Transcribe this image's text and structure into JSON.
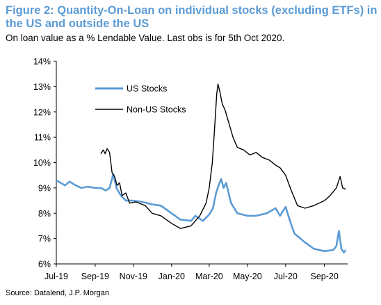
{
  "title": "Figure 2: Quantity-On-Loan on individual stocks (excluding ETFs) in the US and outside the US",
  "subtitle": "On loan value as a % Lendable Value. Last obs is for 5th Oct 2020.",
  "source": "Source: Datalend, J.P. Morgan",
  "chart_data": {
    "type": "line",
    "title": "Figure 2: Quantity-On-Loan on individual stocks (excluding ETFs) in the US and outside the US",
    "subtitle": "On loan value as a % Lendable Value. Last obs is for 5th Oct 2020.",
    "xlabel": "",
    "ylabel": "",
    "x_ticks": [
      "Jul-19",
      "Sep-19",
      "Nov-19",
      "Jan-20",
      "Mar-20",
      "May-20",
      "Jul-20",
      "Sep-20"
    ],
    "y_ticks": [
      "6%",
      "7%",
      "8%",
      "9%",
      "10%",
      "11%",
      "12%",
      "13%",
      "14%"
    ],
    "ylim": [
      6,
      14
    ],
    "xlim": [
      "2019-07-01",
      "2020-10-08"
    ],
    "grid": false,
    "legend": "upper-left",
    "series": [
      {
        "name": "US Stocks",
        "color": "#5B9BD5",
        "points": [
          [
            "2019-07-01",
            9.3
          ],
          [
            "2019-07-08",
            9.2
          ],
          [
            "2019-07-15",
            9.1
          ],
          [
            "2019-07-22",
            9.25
          ],
          [
            "2019-08-01",
            9.1
          ],
          [
            "2019-08-10",
            9.0
          ],
          [
            "2019-08-20",
            9.05
          ],
          [
            "2019-09-01",
            9.0
          ],
          [
            "2019-09-10",
            9.0
          ],
          [
            "2019-09-18",
            8.9
          ],
          [
            "2019-09-24",
            9.0
          ],
          [
            "2019-09-30",
            9.55
          ],
          [
            "2019-10-05",
            9.0
          ],
          [
            "2019-10-12",
            8.7
          ],
          [
            "2019-10-20",
            8.5
          ],
          [
            "2019-11-01",
            8.5
          ],
          [
            "2019-11-15",
            8.45
          ],
          [
            "2019-12-01",
            8.35
          ],
          [
            "2019-12-15",
            8.3
          ],
          [
            "2020-01-01",
            8.0
          ],
          [
            "2020-01-15",
            7.75
          ],
          [
            "2020-02-01",
            7.7
          ],
          [
            "2020-02-08",
            7.9
          ],
          [
            "2020-02-20",
            7.7
          ],
          [
            "2020-03-01",
            7.95
          ],
          [
            "2020-03-07",
            8.2
          ],
          [
            "2020-03-12",
            8.8
          ],
          [
            "2020-03-16",
            9.1
          ],
          [
            "2020-03-20",
            9.35
          ],
          [
            "2020-03-24",
            9.0
          ],
          [
            "2020-03-28",
            9.2
          ],
          [
            "2020-04-05",
            8.4
          ],
          [
            "2020-04-15",
            8.0
          ],
          [
            "2020-05-01",
            7.9
          ],
          [
            "2020-05-15",
            7.9
          ],
          [
            "2020-06-01",
            8.0
          ],
          [
            "2020-06-15",
            8.2
          ],
          [
            "2020-06-22",
            7.9
          ],
          [
            "2020-07-01",
            8.25
          ],
          [
            "2020-07-08",
            7.7
          ],
          [
            "2020-07-15",
            7.2
          ],
          [
            "2020-08-01",
            6.85
          ],
          [
            "2020-08-15",
            6.6
          ],
          [
            "2020-09-01",
            6.5
          ],
          [
            "2020-09-15",
            6.55
          ],
          [
            "2020-09-20",
            6.7
          ],
          [
            "2020-09-24",
            7.3
          ],
          [
            "2020-09-28",
            6.6
          ],
          [
            "2020-10-02",
            6.45
          ],
          [
            "2020-10-05",
            6.55
          ]
        ]
      },
      {
        "name": "Non-US Stocks",
        "color": "#000000",
        "points": [
          [
            "2019-09-10",
            10.35
          ],
          [
            "2019-09-14",
            10.5
          ],
          [
            "2019-09-17",
            10.35
          ],
          [
            "2019-09-20",
            10.55
          ],
          [
            "2019-09-24",
            10.4
          ],
          [
            "2019-09-28",
            9.6
          ],
          [
            "2019-10-02",
            9.45
          ],
          [
            "2019-10-06",
            9.1
          ],
          [
            "2019-10-10",
            9.2
          ],
          [
            "2019-10-14",
            8.7
          ],
          [
            "2019-10-20",
            8.8
          ],
          [
            "2019-10-26",
            8.4
          ],
          [
            "2019-11-05",
            8.45
          ],
          [
            "2019-11-20",
            8.3
          ],
          [
            "2019-12-01",
            8.0
          ],
          [
            "2019-12-15",
            7.9
          ],
          [
            "2020-01-01",
            7.6
          ],
          [
            "2020-01-15",
            7.4
          ],
          [
            "2020-02-01",
            7.5
          ],
          [
            "2020-02-15",
            7.9
          ],
          [
            "2020-02-25",
            8.4
          ],
          [
            "2020-03-01",
            9.0
          ],
          [
            "2020-03-06",
            10.0
          ],
          [
            "2020-03-10",
            11.5
          ],
          [
            "2020-03-13",
            12.7
          ],
          [
            "2020-03-15",
            13.1
          ],
          [
            "2020-03-18",
            12.8
          ],
          [
            "2020-03-22",
            12.3
          ],
          [
            "2020-03-26",
            12.1
          ],
          [
            "2020-04-01",
            11.6
          ],
          [
            "2020-04-08",
            11.0
          ],
          [
            "2020-04-15",
            10.6
          ],
          [
            "2020-04-25",
            10.5
          ],
          [
            "2020-05-05",
            10.3
          ],
          [
            "2020-05-15",
            10.4
          ],
          [
            "2020-05-25",
            10.2
          ],
          [
            "2020-06-05",
            10.1
          ],
          [
            "2020-06-15",
            9.9
          ],
          [
            "2020-06-22",
            9.8
          ],
          [
            "2020-07-01",
            9.5
          ],
          [
            "2020-07-10",
            8.9
          ],
          [
            "2020-07-20",
            8.3
          ],
          [
            "2020-08-01",
            8.2
          ],
          [
            "2020-08-15",
            8.3
          ],
          [
            "2020-09-01",
            8.5
          ],
          [
            "2020-09-10",
            8.7
          ],
          [
            "2020-09-20",
            9.0
          ],
          [
            "2020-09-26",
            9.45
          ],
          [
            "2020-09-30",
            9.0
          ],
          [
            "2020-10-05",
            8.95
          ]
        ]
      }
    ]
  }
}
